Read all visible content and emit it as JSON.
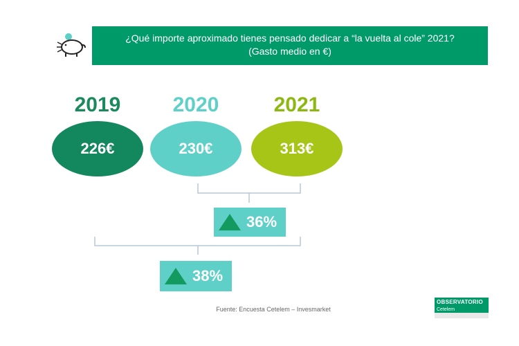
{
  "header": {
    "line1": "¿Qué importe aproximado tienes pensado dedicar a “la vuelta al cole” 2021?",
    "line2": "(Gasto medio en €)"
  },
  "colors": {
    "primary": "#009a68",
    "teal": "#5fd0c8",
    "lime": "#a6c516",
    "year2019": "#1a8a5e",
    "year2020": "#5fd0c8",
    "year2021": "#8db814"
  },
  "chart_data": {
    "type": "bar",
    "categories": [
      "2019",
      "2020",
      "2021"
    ],
    "values": [
      226,
      230,
      313
    ],
    "value_labels": [
      "226€",
      "230€",
      "313€"
    ],
    "title": "¿Qué importe aproximado tienes pensado dedicar a “la vuelta al cole” 2021?",
    "subtitle": "(Gasto medio en €)",
    "annotations": [
      {
        "text": "36%",
        "from": "2020",
        "to": "2021",
        "direction": "up"
      },
      {
        "text": "38%",
        "from": "2019",
        "to": "2021",
        "direction": "up"
      }
    ]
  },
  "source": "Fuente: Encuesta Cetelem –  Invesmarket",
  "logo": {
    "title": "OBSERVATORIO",
    "subtitle": "Cetelem"
  }
}
